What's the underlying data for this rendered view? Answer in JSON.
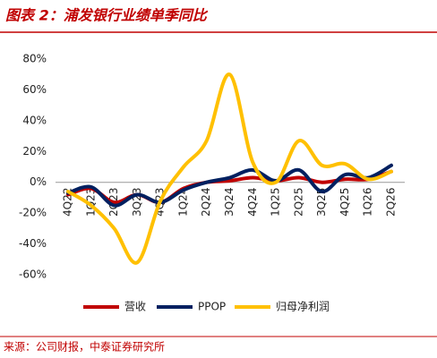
{
  "title": "图表 2：浦发银行业绩单季同比",
  "source": "来源：公司财报，中泰证券研究所",
  "chart_data": {
    "type": "line",
    "categories": [
      "4Q22",
      "1Q23",
      "2Q23",
      "3Q23",
      "4Q23",
      "1Q24",
      "2Q24",
      "3Q24",
      "4Q24",
      "1Q25",
      "2Q25",
      "3Q25",
      "4Q25",
      "1Q26",
      "2Q26"
    ],
    "series": [
      {
        "name": "营收",
        "color": "#c00000",
        "values": [
          -8,
          -4,
          -13,
          -8,
          -13,
          -4,
          0,
          1,
          3,
          1,
          3,
          0,
          2,
          2,
          7
        ]
      },
      {
        "name": "PPOP",
        "color": "#002060",
        "values": [
          -7,
          -3,
          -15,
          -8,
          -13,
          -5,
          0,
          3,
          8,
          1,
          8,
          -6,
          5,
          3,
          11
        ]
      },
      {
        "name": "归母净利润",
        "color": "#ffc000",
        "values": [
          -6,
          -15,
          -30,
          -52,
          -12,
          10,
          27,
          70,
          13,
          0,
          27,
          11,
          12,
          2,
          7
        ]
      }
    ],
    "ylim": [
      -60,
      80
    ],
    "yticks": [
      {
        "value": -60,
        "label": "-60%"
      },
      {
        "value": -40,
        "label": "-40%"
      },
      {
        "value": -20,
        "label": "-20%"
      },
      {
        "value": 0,
        "label": "0%"
      },
      {
        "value": 20,
        "label": "20%"
      },
      {
        "value": 40,
        "label": "40%"
      },
      {
        "value": 60,
        "label": "60%"
      },
      {
        "value": 80,
        "label": "80%"
      }
    ],
    "legend": "bottom"
  }
}
